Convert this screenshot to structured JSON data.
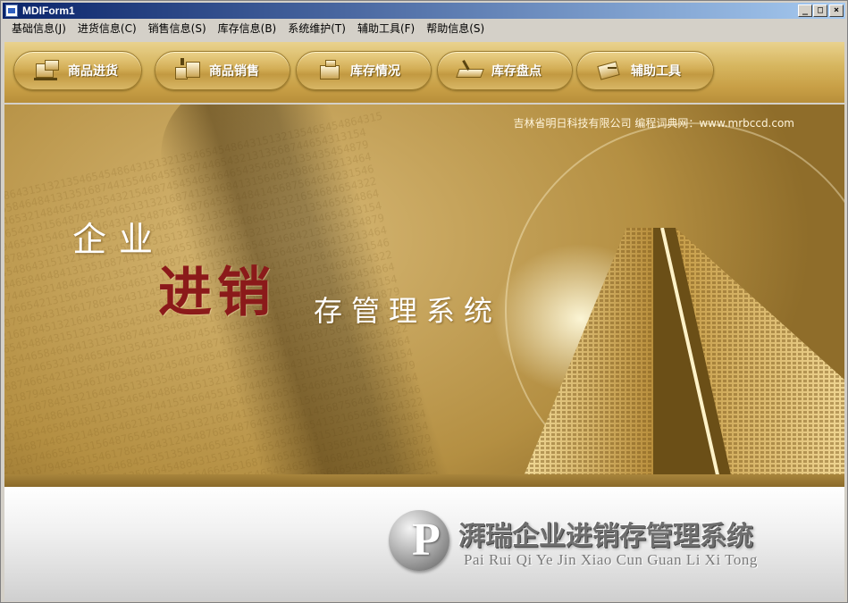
{
  "window": {
    "title": "MDIForm1",
    "controls": {
      "minimize": "_",
      "maximize": "□",
      "close": "×"
    }
  },
  "menu": [
    {
      "label": "基础信息(J)"
    },
    {
      "label": "进货信息(C)"
    },
    {
      "label": "销售信息(S)"
    },
    {
      "label": "库存信息(B)"
    },
    {
      "label": "系统维护(T)"
    },
    {
      "label": "辅助工具(F)"
    },
    {
      "label": "帮助信息(S)"
    }
  ],
  "toolbar": {
    "buttons": [
      {
        "label": "商品进货",
        "icon": "purchase-icon"
      },
      {
        "label": "商品销售",
        "icon": "sales-icon"
      },
      {
        "label": "库存情况",
        "icon": "inventory-icon"
      },
      {
        "label": "库存盘点",
        "icon": "stocktake-icon"
      },
      {
        "label": "辅助工具",
        "icon": "tools-icon"
      }
    ]
  },
  "banner": {
    "company": "吉林省明日科技有限公司   编程词典网：www.mrbccd.com",
    "line1": "企业",
    "line2": "进销",
    "line3": "存管理系统"
  },
  "footer": {
    "logo_letter": "P",
    "title_cn": "湃瑞企业进销存管理系统",
    "title_en": "Pai Rui Qi Ye Jin Xiao Cun Guan Li Xi Tong"
  },
  "colors": {
    "titlebar_start": "#0a246a",
    "titlebar_end": "#a6caf0",
    "gold": "#d3ae56",
    "banner_red": "#8b1a1a"
  }
}
